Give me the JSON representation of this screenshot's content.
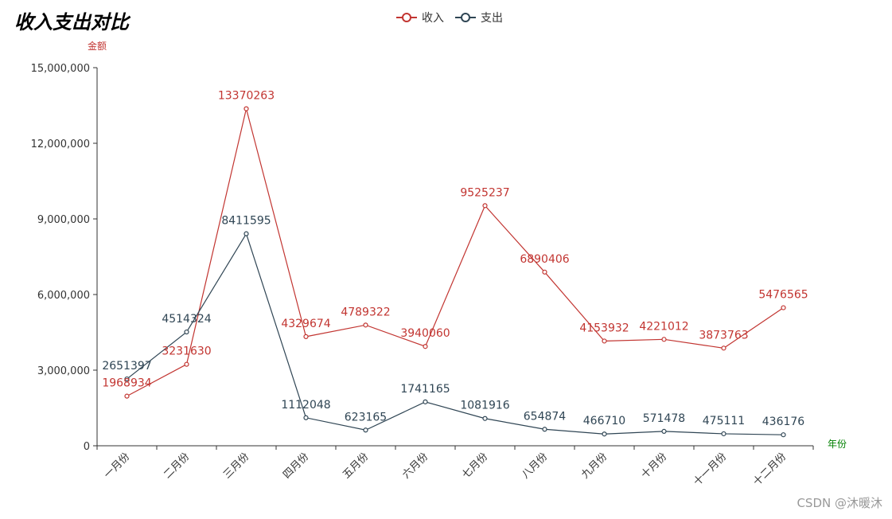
{
  "chart_data": {
    "type": "line",
    "title": "收入支出对比",
    "ylabel": "金额",
    "xlabel": "年份",
    "ylim": [
      0,
      15000000
    ],
    "yticks": [
      0,
      3000000,
      6000000,
      9000000,
      12000000,
      15000000
    ],
    "ytick_labels": [
      "0",
      "3,000,000",
      "6,000,000",
      "9,000,000",
      "12,000,000",
      "15,000,000"
    ],
    "categories": [
      "一月份",
      "二月份",
      "三月份",
      "四月份",
      "五月份",
      "六月份",
      "七月份",
      "八月份",
      "九月份",
      "十月份",
      "十一月份",
      "十二月份"
    ],
    "series": [
      {
        "name": "收入",
        "color": "#c23531",
        "values": [
          1968934,
          3231630,
          13370263,
          4329674,
          4789322,
          3940060,
          9525237,
          6890406,
          4153932,
          4221012,
          3873763,
          5476565
        ]
      },
      {
        "name": "支出",
        "color": "#2f4554",
        "values": [
          2651397,
          4514324,
          8411595,
          1112048,
          623165,
          1741165,
          1081916,
          654874,
          466710,
          571478,
          475111,
          436176
        ]
      }
    ],
    "legend_position": "top-center",
    "ylabel_color": "#c23531",
    "xlabel_color": "#008000"
  },
  "watermark": "CSDN @沐暖沐"
}
